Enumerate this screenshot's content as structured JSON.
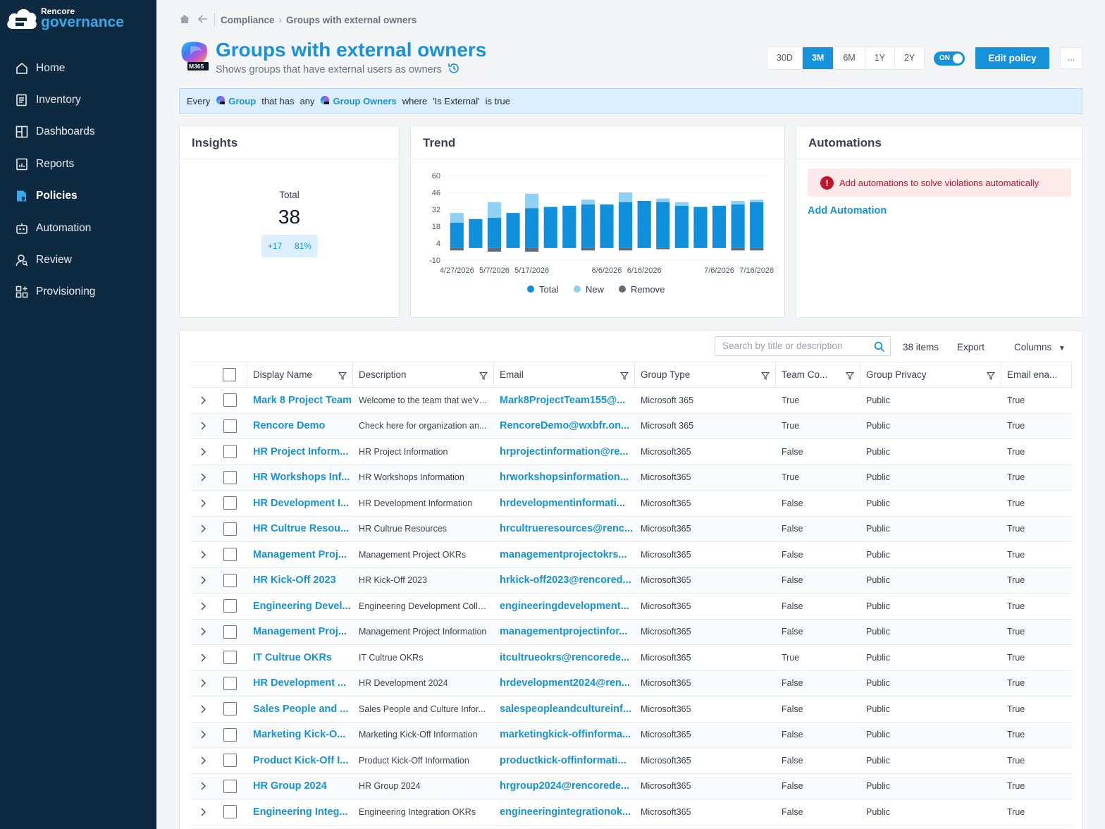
{
  "brand": {
    "small": "Rencore",
    "big": "governance"
  },
  "nav": [
    {
      "label": "Home",
      "icon": "home-icon"
    },
    {
      "label": "Inventory",
      "icon": "inventory-icon"
    },
    {
      "label": "Dashboards",
      "icon": "dashboards-icon"
    },
    {
      "label": "Reports",
      "icon": "reports-icon"
    },
    {
      "label": "Policies",
      "icon": "policies-icon",
      "active": true
    },
    {
      "label": "Automation",
      "icon": "robot-icon"
    },
    {
      "label": "Review",
      "icon": "review-icon"
    },
    {
      "label": "Provisioning",
      "icon": "provisioning-icon"
    }
  ],
  "breadcrumb": {
    "section": "Compliance",
    "current": "Groups with external owners"
  },
  "page": {
    "badge": "M365",
    "title": "Groups with external owners",
    "subtitle": "Shows groups that have external users as owners"
  },
  "period": {
    "options": [
      "30D",
      "3M",
      "6M",
      "1Y",
      "2Y"
    ],
    "selected": "3M"
  },
  "toggle": {
    "label": "ON"
  },
  "actions": {
    "edit": "Edit policy",
    "more": "..."
  },
  "rule": {
    "every": "Every",
    "entity": "Group",
    "that_has": "that has",
    "any": "any",
    "relation": "Group Owners",
    "where": "where",
    "condition": "'Is External'",
    "is_true": "is true"
  },
  "insights": {
    "title": "Insights",
    "total_label": "Total",
    "total_value": "38",
    "delta": "+17",
    "percent": "81%"
  },
  "trend": {
    "title": "Trend"
  },
  "chart_data": {
    "type": "bar",
    "title": "Trend",
    "ylim": [
      -10,
      60
    ],
    "yticks": [
      60,
      46,
      32,
      18,
      4,
      -10
    ],
    "xtick_labels": [
      "4/27/2026",
      "5/7/2026",
      "5/17/2026",
      "6/6/2026",
      "6/16/2026",
      "7/6/2026",
      "7/16/2026"
    ],
    "xtick_positions": [
      0,
      2,
      4,
      8,
      10,
      14,
      16
    ],
    "series": [
      {
        "name": "Total",
        "color": "#0f8fdc",
        "values": [
          21,
          24,
          25,
          29,
          33,
          34,
          35,
          36,
          36,
          38,
          39,
          38,
          35,
          34,
          35,
          36,
          38
        ]
      },
      {
        "name": "New",
        "color": "#8fd0f5",
        "values": [
          8,
          0,
          13,
          0,
          12,
          0,
          0,
          4,
          0,
          8,
          0,
          3,
          3,
          0,
          0,
          3,
          2
        ]
      },
      {
        "name": "Remove",
        "color": "#5f6b77",
        "values": [
          -2,
          0,
          -3,
          0,
          -3,
          0,
          0,
          -2,
          0,
          -2,
          0,
          -1,
          0,
          0,
          0,
          -2,
          -2
        ]
      }
    ]
  },
  "automations": {
    "title": "Automations",
    "alert": "Add automations to solve violations automatically",
    "add": "Add Automation"
  },
  "toolbar": {
    "search_placeholder": "Search by title or description",
    "count": "38 items",
    "export": "Export",
    "columns": "Columns"
  },
  "table": {
    "headers": [
      "Display Name",
      "Description",
      "Email",
      "Group Type",
      "Team Co...",
      "Group Privacy",
      "Email ena..."
    ],
    "rows": [
      [
        "Mark 8 Project Team",
        "Welcome to the team that we've...",
        "Mark8ProjectTeam155@...",
        "Microsoft 365",
        "True",
        "Public",
        "True"
      ],
      [
        "Rencore Demo",
        "Check here for organization an...",
        "RencoreDemo@wxbfr.on...",
        "Microsoft 365",
        "True",
        "Public",
        "True"
      ],
      [
        "HR Project Inform...",
        "HR Project Information",
        "hrprojectinformation@re...",
        "Microsoft365",
        "False",
        "Public",
        "True"
      ],
      [
        "HR Workshops Inf...",
        "HR Workshops Information",
        "hrworkshopsinformation...",
        "Microsoft365",
        "True",
        "Public",
        "True"
      ],
      [
        "HR Development I...",
        "HR Development Information",
        "hrdevelopmentinformati...",
        "Microsoft365",
        "False",
        "Public",
        "True"
      ],
      [
        "HR Cultrue Resou...",
        "HR Cultrue Resources",
        "hrcultrueresources@renc...",
        "Microsoft365",
        "False",
        "Public",
        "True"
      ],
      [
        "Management Proj...",
        "Management Project OKRs",
        "managementprojectokrs...",
        "Microsoft365",
        "False",
        "Public",
        "True"
      ],
      [
        "HR Kick-Off 2023",
        "HR Kick-Off 2023",
        "hrkick-off2023@rencored...",
        "Microsoft365",
        "False",
        "Public",
        "True"
      ],
      [
        "Engineering Devel...",
        "Engineering Development Colla...",
        "engineeringdevelopment...",
        "Microsoft365",
        "False",
        "Public",
        "True"
      ],
      [
        "Management Proj...",
        "Management Project Information",
        "managementprojectinfor...",
        "Microsoft365",
        "False",
        "Public",
        "True"
      ],
      [
        "IT Cultrue OKRs",
        "IT Cultrue OKRs",
        "itcultrueokrs@rencorede...",
        "Microsoft365",
        "True",
        "Public",
        "True"
      ],
      [
        "HR Development ...",
        "HR Development 2024",
        "hrdevelopment2024@ren...",
        "Microsoft365",
        "False",
        "Public",
        "True"
      ],
      [
        "Sales People and ...",
        "Sales People and Culture Infor...",
        "salespeopleandcultureinf...",
        "Microsoft365",
        "False",
        "Public",
        "True"
      ],
      [
        "Marketing Kick-O...",
        "Marketing Kick-Off Information",
        "marketingkick-offinforma...",
        "Microsoft365",
        "False",
        "Public",
        "True"
      ],
      [
        "Product Kick-Off I...",
        "Product Kick-Off Information",
        "productkick-offinformati...",
        "Microsoft365",
        "False",
        "Public",
        "True"
      ],
      [
        "HR Group 2024",
        "HR Group 2024",
        "hrgroup2024@rencorede...",
        "Microsoft365",
        "False",
        "Public",
        "True"
      ],
      [
        "Engineering Integ...",
        "Engineering Integration OKRs",
        "engineeringintegrationok...",
        "Microsoft365",
        "False",
        "Public",
        "True"
      ]
    ]
  }
}
